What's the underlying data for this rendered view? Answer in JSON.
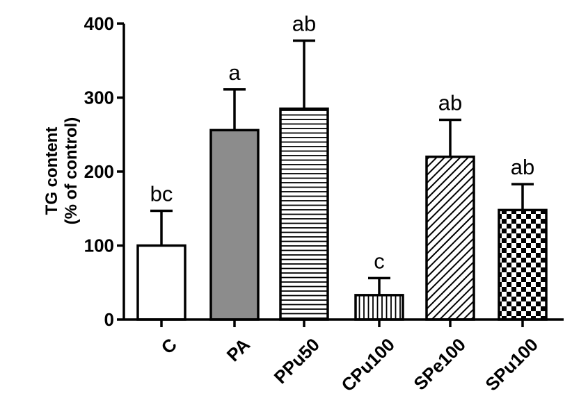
{
  "chart_data": {
    "type": "bar",
    "title": "",
    "xlabel": "",
    "ylabel_lines": [
      "TG content",
      "(% of control)"
    ],
    "ylim": [
      0,
      400
    ],
    "yticks": [
      0,
      100,
      200,
      300,
      400
    ],
    "grid": false,
    "legend": "none",
    "categories": [
      "C",
      "PA",
      "PPu50",
      "CPu100",
      "SPe100",
      "SPu100"
    ],
    "values": [
      100,
      256,
      285,
      33,
      220,
      148
    ],
    "errors": [
      47,
      55,
      92,
      23,
      50,
      35
    ],
    "significance": [
      "bc",
      "a",
      "ab",
      "c",
      "ab",
      "ab"
    ],
    "patterns": [
      "white",
      "gray",
      "horizontal-lines",
      "vertical-lines",
      "diagonal-lines",
      "checkerboard"
    ],
    "colors": {
      "stroke": "#000000",
      "gray_fill": "#8c8c8c",
      "white_fill": "#ffffff"
    }
  }
}
